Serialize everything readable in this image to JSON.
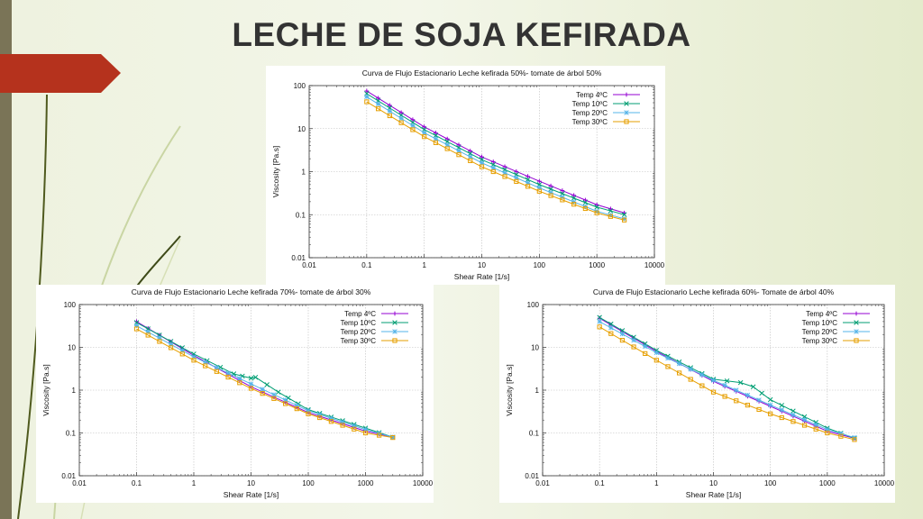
{
  "slide": {
    "title": "LECHE DE SOJA KEFIRADA",
    "colors": {
      "accent_tab": "#b5321d",
      "left_bar": "#7a7457",
      "title": "#333333"
    }
  },
  "chart_data": [
    {
      "type": "line",
      "title": "Curva de Flujo Estacionario Leche kefirada 50%- tomate de árbol 50%",
      "xlabel": "Shear Rate [1/s]",
      "ylabel": "Viscosity [Pa.s]",
      "xscale": "log",
      "yscale": "log",
      "xlim": [
        0.01,
        10000
      ],
      "ylim": [
        0.01,
        100
      ],
      "xticks": [
        "0.01",
        "0.1",
        "1",
        "10",
        "100",
        "1000",
        "10000"
      ],
      "yticks": [
        "100",
        "10",
        "1",
        "0.1",
        "0.01"
      ],
      "grid": true,
      "legend": "top-right",
      "series": [
        {
          "name": "Temp 4ºC",
          "color": "#9400d3",
          "marker": "+",
          "x": [
            0.1,
            1,
            10,
            100,
            1000,
            3000
          ],
          "y": [
            75,
            11,
            2.2,
            0.6,
            0.17,
            0.11
          ]
        },
        {
          "name": "Temp 10ºC",
          "color": "#009e73",
          "marker": "x",
          "x": [
            0.1,
            1,
            10,
            100,
            1000,
            3000
          ],
          "y": [
            65,
            9.5,
            1.9,
            0.5,
            0.15,
            0.1
          ]
        },
        {
          "name": "Temp 20ºC",
          "color": "#56b4e9",
          "marker": "*",
          "x": [
            0.1,
            1,
            10,
            100,
            1000,
            3000
          ],
          "y": [
            55,
            8,
            1.6,
            0.42,
            0.12,
            0.08
          ]
        },
        {
          "name": "Temp 30ºC",
          "color": "#e69f00",
          "marker": "square",
          "x": [
            0.1,
            1,
            10,
            100,
            1000,
            3000
          ],
          "y": [
            42,
            6.5,
            1.3,
            0.35,
            0.11,
            0.075
          ]
        }
      ]
    },
    {
      "type": "line",
      "title": "Curva de Flujo Estacionario Leche kefirada 70%- tomate de árbol 30%",
      "xlabel": "Shear Rate [1/s]",
      "ylabel": "Viscosity [Pa.s]",
      "xscale": "log",
      "yscale": "log",
      "xlim": [
        0.01,
        10000
      ],
      "ylim": [
        0.01,
        100
      ],
      "xticks": [
        "0.01",
        "0.1",
        "1",
        "10",
        "100",
        "1000",
        "10000"
      ],
      "yticks": [
        "100",
        "10",
        "1",
        "0.1",
        "0.01"
      ],
      "grid": true,
      "legend": "top-right",
      "series": [
        {
          "name": "Temp 4ºC",
          "color": "#9400d3",
          "marker": "+",
          "x": [
            0.1,
            1,
            10,
            100,
            1000,
            3000
          ],
          "y": [
            40,
            6.5,
            1.2,
            0.3,
            0.11,
            0.08
          ]
        },
        {
          "name": "Temp 10ºC",
          "color": "#009e73",
          "marker": "x",
          "x": [
            0.1,
            1,
            5,
            10,
            12,
            30,
            100,
            1000,
            3000
          ],
          "y": [
            38,
            7,
            2.4,
            1.9,
            2,
            0.9,
            0.35,
            0.13,
            0.08
          ]
        },
        {
          "name": "Temp 20ºC",
          "color": "#56b4e9",
          "marker": "*",
          "x": [
            0.1,
            1,
            10,
            100,
            1000,
            3000
          ],
          "y": [
            32,
            6,
            1.4,
            0.33,
            0.12,
            0.08
          ]
        },
        {
          "name": "Temp 30ºC",
          "color": "#e69f00",
          "marker": "square",
          "x": [
            0.1,
            1,
            10,
            100,
            1000,
            3000
          ],
          "y": [
            27,
            5,
            1.1,
            0.28,
            0.1,
            0.078
          ]
        }
      ]
    },
    {
      "type": "line",
      "title": "Curva de Flujo Estacionario Leche kefirada 60%- Tomate de árbol 40%",
      "xlabel": "Shear Rate [1/s]",
      "ylabel": "Viscosity [Pa.s]",
      "xscale": "log",
      "yscale": "log",
      "xlim": [
        0.01,
        10000
      ],
      "ylim": [
        0.01,
        100
      ],
      "xticks": [
        "0.01",
        "0.1",
        "1",
        "10",
        "100",
        "1000",
        "10000"
      ],
      "yticks": [
        "100",
        "10",
        "1",
        "0.1",
        "0.01"
      ],
      "grid": true,
      "legend": "top-right",
      "series": [
        {
          "name": "Temp 4ºC",
          "color": "#9400d3",
          "marker": "+",
          "x": [
            0.1,
            1,
            10,
            100,
            1000,
            3000
          ],
          "y": [
            48,
            8,
            1.6,
            0.42,
            0.11,
            0.075
          ]
        },
        {
          "name": "Temp 10ºC",
          "color": "#009e73",
          "marker": "x",
          "x": [
            0.1,
            1,
            10,
            30,
            50,
            100,
            1000,
            3000
          ],
          "y": [
            50,
            8.5,
            1.8,
            1.5,
            1.2,
            0.6,
            0.13,
            0.075
          ]
        },
        {
          "name": "Temp 20ºC",
          "color": "#56b4e9",
          "marker": "*",
          "x": [
            0.1,
            1,
            10,
            100,
            1000,
            3000
          ],
          "y": [
            40,
            7.5,
            1.7,
            0.45,
            0.12,
            0.078
          ]
        },
        {
          "name": "Temp 30ºC",
          "color": "#e69f00",
          "marker": "square",
          "x": [
            0.1,
            1,
            10,
            100,
            1000,
            3000
          ],
          "y": [
            30,
            5,
            0.9,
            0.28,
            0.1,
            0.07
          ]
        }
      ]
    }
  ]
}
